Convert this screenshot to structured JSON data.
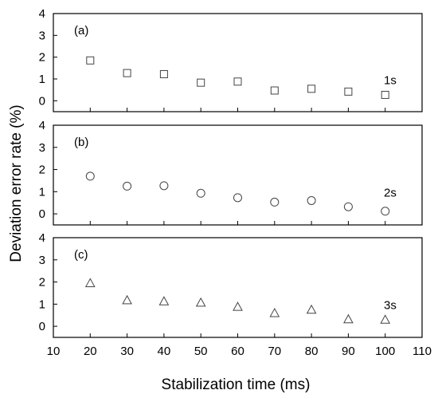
{
  "chart_data": {
    "type": "scatter",
    "xlabel": "Stabilization time (ms)",
    "ylabel": "Deviation error rate (%)",
    "xlim": [
      10,
      110
    ],
    "xticks": [
      10,
      20,
      30,
      40,
      50,
      60,
      70,
      80,
      90,
      100,
      110
    ],
    "ylim": [
      -0.5,
      4
    ],
    "yticks": [
      0,
      1,
      2,
      3,
      4
    ],
    "grid": false,
    "legend": "none",
    "panels": [
      {
        "label": "(a)",
        "tag": "1s",
        "marker": "square",
        "x": [
          20,
          30,
          40,
          50,
          60,
          70,
          80,
          90,
          100
        ],
        "y": [
          1.85,
          1.27,
          1.22,
          0.83,
          0.88,
          0.47,
          0.55,
          0.42,
          0.27
        ]
      },
      {
        "label": "(b)",
        "tag": "2s",
        "marker": "circle",
        "x": [
          20,
          30,
          40,
          50,
          60,
          70,
          80,
          90,
          100
        ],
        "y": [
          1.7,
          1.25,
          1.27,
          0.93,
          0.73,
          0.53,
          0.6,
          0.32,
          0.12
        ]
      },
      {
        "label": "(c)",
        "tag": "3s",
        "marker": "triangle",
        "x": [
          20,
          30,
          40,
          50,
          60,
          70,
          80,
          90,
          100
        ],
        "y": [
          1.95,
          1.18,
          1.13,
          1.07,
          0.88,
          0.6,
          0.75,
          0.32,
          0.3
        ]
      }
    ]
  }
}
